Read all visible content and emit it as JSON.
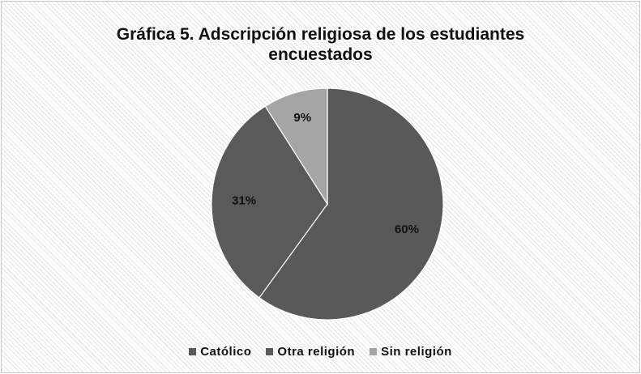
{
  "chart_data": {
    "type": "pie",
    "title": "Gráfica 5. Adscripción religiosa de los estudiantes encuestados",
    "title_lines": [
      "Gráfica 5. Adscripción religiosa de los estudiantes",
      "encuestados"
    ],
    "categories": [
      "Católico",
      "Otra religión",
      "Sin religión"
    ],
    "values": [
      60,
      31,
      9
    ],
    "data_labels": [
      "60%",
      "31%",
      "9%"
    ],
    "colors": [
      "#595959",
      "#5a5a5a",
      "#a5a5a5"
    ],
    "legend_position": "bottom",
    "start_angle": "12 o'clock, clockwise"
  }
}
